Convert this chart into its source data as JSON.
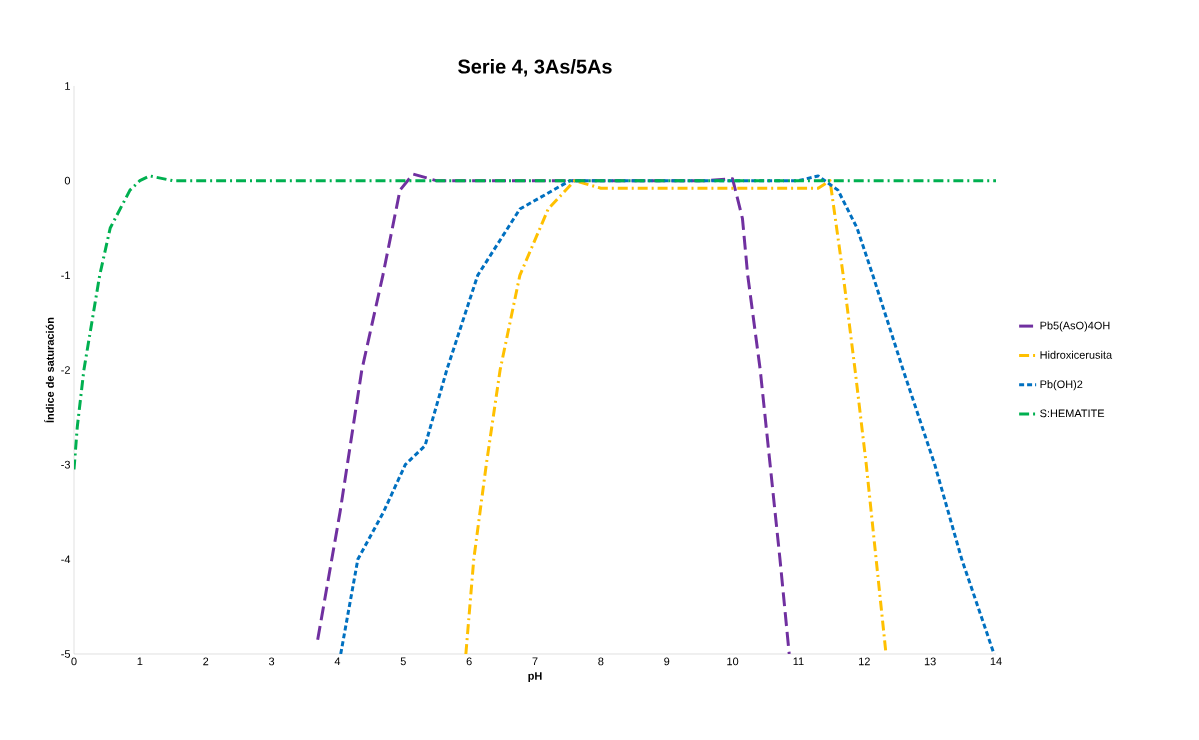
{
  "chart_data": {
    "type": "line",
    "title": "Serie 4, 3As/5As",
    "xlabel": "pH",
    "ylabel": "Índice de saturación",
    "xlim": [
      0,
      14
    ],
    "ylim": [
      -5,
      1
    ],
    "xticks": [
      0,
      1,
      2,
      3,
      4,
      5,
      6,
      7,
      8,
      9,
      10,
      11,
      12,
      13,
      14
    ],
    "yticks": [
      -5,
      -4,
      -3,
      -2,
      -1,
      0,
      1
    ],
    "grid": false,
    "legend": "right",
    "series": [
      {
        "name": "Pb5(AsO)4OH",
        "color": "#7030a0",
        "line_style": "longdashed",
        "x": [
          3.7,
          4.04,
          4.37,
          4.69,
          4.95,
          5.15,
          5.5,
          6,
          9.6,
          10.0,
          10.15,
          10.23,
          10.42,
          10.57,
          10.72,
          10.86
        ],
        "values": [
          -4.85,
          -3.5,
          -2,
          -1,
          -0.1,
          0.07,
          0,
          0,
          0,
          0.02,
          -0.4,
          -1,
          -2,
          -3,
          -4,
          -5
        ]
      },
      {
        "name": "Hidroxicerusita",
        "color": "#ffc000",
        "line_style": "dashdot",
        "x": [
          5.95,
          6.07,
          6.26,
          6.47,
          6.77,
          7.2,
          7.6,
          8.0,
          11.3,
          11.48,
          11.68,
          11.86,
          12.03,
          12.18,
          12.33
        ],
        "values": [
          -5,
          -4,
          -3,
          -2,
          -1,
          -0.3,
          0,
          -0.08,
          -0.08,
          0,
          -1,
          -2,
          -3,
          -4,
          -5
        ]
      },
      {
        "name": "Pb(OH)2",
        "color": "#0070c0",
        "line_style": "dashed",
        "x": [
          4.05,
          4.31,
          4.7,
          5.03,
          5.33,
          5.66,
          6.13,
          6.77,
          7.53,
          11.0,
          11.3,
          11.6,
          11.89,
          12.13,
          12.59,
          13.07,
          13.48,
          13.97
        ],
        "values": [
          -5,
          -4,
          -3.5,
          -3,
          -2.8,
          -2,
          -1,
          -0.3,
          0,
          0,
          0.05,
          -0.1,
          -0.5,
          -1,
          -2,
          -3,
          -4,
          -5
        ]
      },
      {
        "name": "S:HEMATITE",
        "color": "#00b050",
        "line_style": "dashdot",
        "x": [
          0,
          0.05,
          0.15,
          0.39,
          0.55,
          0.85,
          1.0,
          1.15,
          1.5,
          14
        ],
        "values": [
          -3.05,
          -2.6,
          -2,
          -1,
          -0.5,
          -0.1,
          0,
          0.05,
          0,
          0
        ]
      }
    ]
  }
}
